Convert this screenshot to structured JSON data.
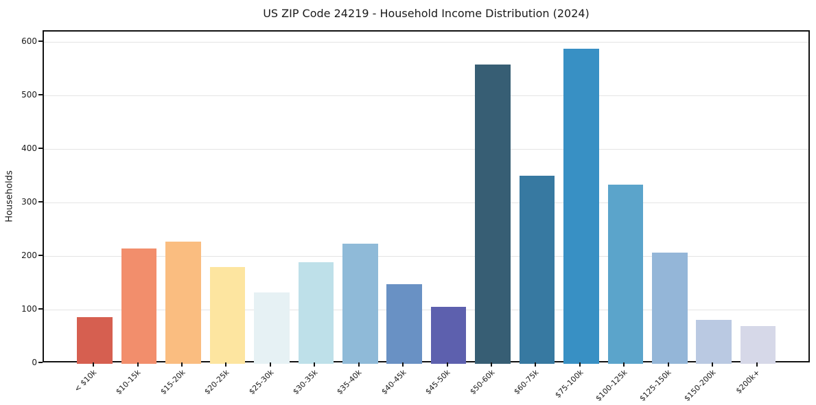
{
  "chart_data": {
    "type": "bar",
    "title": "US ZIP Code 24219 - Household Income Distribution (2024)",
    "xlabel": "",
    "ylabel": "Households",
    "categories": [
      "< $10k",
      "$10-15k",
      "$15-20k",
      "$20-25k",
      "$25-30k",
      "$30-35k",
      "$35-40k",
      "$40-45k",
      "$45-50k",
      "$50-60k",
      "$60-75k",
      "$75-100k",
      "$100-125k",
      "$125-150k",
      "$150-200k",
      "$200k+"
    ],
    "values": [
      87,
      215,
      228,
      181,
      133,
      190,
      224,
      149,
      106,
      558,
      351,
      588,
      334,
      208,
      82,
      71
    ],
    "bar_colors": [
      "#d65f50",
      "#f28e6c",
      "#fabd80",
      "#fde5a0",
      "#e6f1f4",
      "#bee0e9",
      "#8fbad8",
      "#6991c4",
      "#5d60ae",
      "#375e74",
      "#3779a1",
      "#3890c4",
      "#5ba4cb",
      "#94b6d8",
      "#bac9e2",
      "#d6d8e8"
    ],
    "ylim": [
      0,
      620
    ],
    "yticks": [
      0,
      100,
      200,
      300,
      400,
      500,
      600
    ],
    "grid": "horizontal",
    "gridline_color": "#e4e4e4",
    "legend": "none",
    "x_tick_rotation_deg": 45,
    "bar_width_fraction": 0.8
  }
}
